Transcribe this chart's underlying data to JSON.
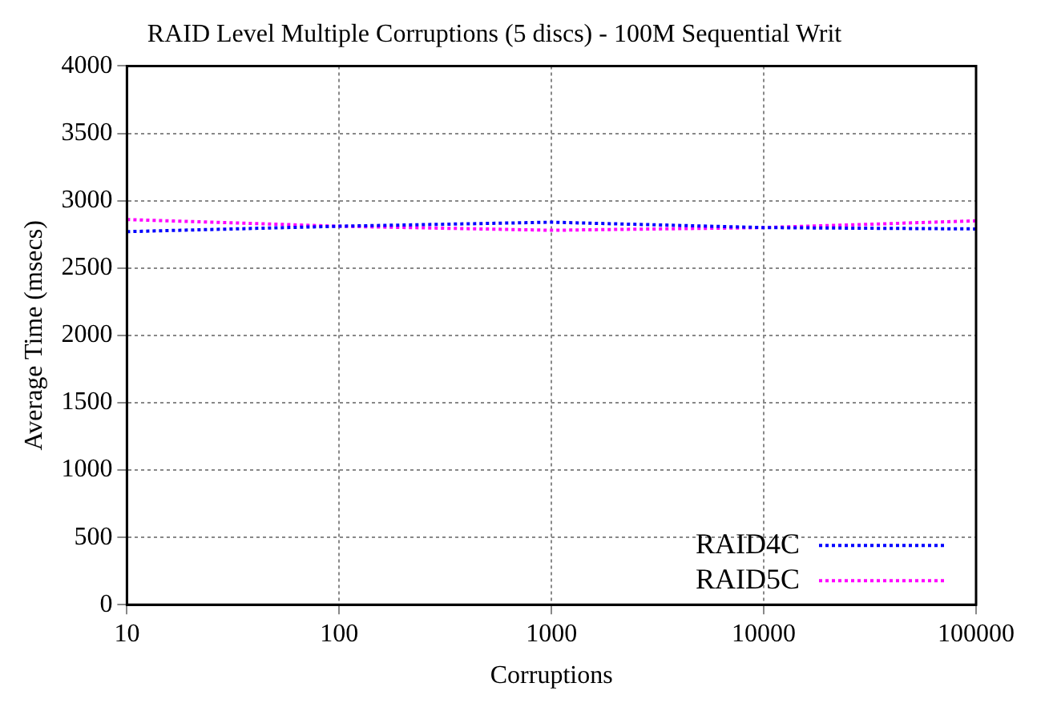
{
  "chart_data": {
    "type": "line",
    "title": "RAID Level Multiple Corruptions (5 discs) - 100M Sequential Writ",
    "xlabel": "Corruptions",
    "ylabel": "Average Time (msecs)",
    "x": [
      10,
      100,
      1000,
      10000,
      100000
    ],
    "series": [
      {
        "name": "RAID4C",
        "color": "#0000ff",
        "values": [
          2770,
          2810,
          2840,
          2800,
          2790
        ]
      },
      {
        "name": "RAID5C",
        "color": "#ff00ff",
        "values": [
          2860,
          2810,
          2780,
          2800,
          2850
        ]
      }
    ],
    "log": "x",
    "xlim": [
      10,
      100000
    ],
    "xticks": [
      10,
      100,
      1000,
      10000,
      100000
    ],
    "ylim": [
      0,
      4000
    ],
    "yticks": [
      0,
      500,
      1000,
      1500,
      2000,
      2500,
      3000,
      3500,
      4000
    ],
    "grid": true,
    "legend": "bottom right",
    "marker": "none",
    "line_style": "dotted"
  }
}
